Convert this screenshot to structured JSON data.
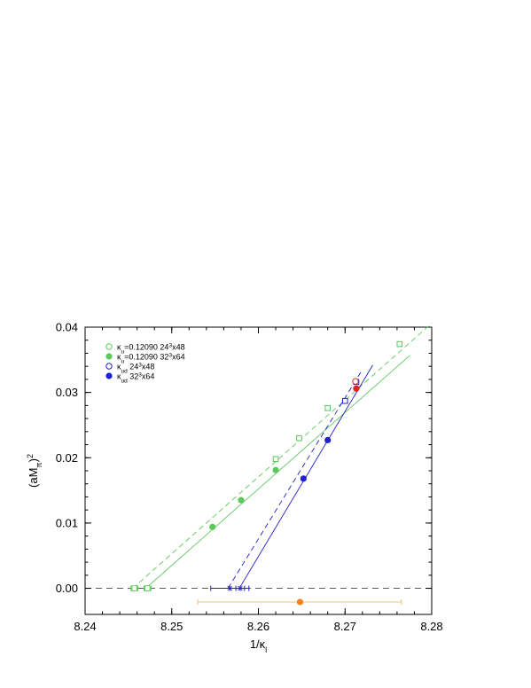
{
  "chart_data": {
    "type": "scatter",
    "title": "",
    "xlabel": "1/κ",
    "xlabel_sub": "l",
    "ylabel": "(aM",
    "ylabel_sub": "π",
    "ylabel_tail": ")",
    "ylabel_sup": "2",
    "xlim": [
      8.24,
      8.28
    ],
    "ylim": [
      -0.004,
      0.04
    ],
    "xticks": [
      8.24,
      8.25,
      8.26,
      8.27,
      8.28
    ],
    "xtick_labels": [
      "8.24",
      "8.25",
      "8.26",
      "8.27",
      "8.28"
    ],
    "yticks": [
      0.0,
      0.01,
      0.02,
      0.03,
      0.04
    ],
    "ytick_labels": [
      "0.00",
      "0.01",
      "0.02",
      "0.03",
      "0.04"
    ],
    "grid": false,
    "zero_line": true,
    "legend_position": "top-left",
    "legend": [
      {
        "pre": "κ",
        "sub": "u",
        "mid": "=0.12090 24",
        "sup": "3",
        "post": "x48",
        "marker": "open-circle",
        "color": "#5cc85c"
      },
      {
        "pre": "κ",
        "sub": "u",
        "mid": "=0.12090 32",
        "sup": "3",
        "post": "x64",
        "marker": "filled-circle",
        "color": "#5cc85c"
      },
      {
        "pre": "κ",
        "sub": "ud",
        "mid": " 24",
        "sup": "3",
        "post": "x48",
        "marker": "open-circle",
        "color": "#2020d0"
      },
      {
        "pre": "κ",
        "sub": "ud",
        "mid": " 32",
        "sup": "3",
        "post": "x64",
        "marker": "filled-circle",
        "color": "#2020d0"
      }
    ],
    "series": [
      {
        "id": "green-open",
        "marker": "open-square",
        "color": "#5cc85c",
        "points": [
          [
            8.262,
            0.0198
          ],
          [
            8.2647,
            0.023
          ],
          [
            8.268,
            0.0276
          ],
          [
            8.2763,
            0.0374
          ]
        ],
        "fit_line": {
          "style": "dashed",
          "from": [
            8.2455,
            0.0
          ],
          "to": [
            8.28,
            0.0406
          ]
        },
        "intercept": {
          "x": 8.2457,
          "xerr": 0.0004,
          "marker": "open-square"
        }
      },
      {
        "id": "green-filled",
        "marker": "filled-circle",
        "color": "#5cc85c",
        "points": [
          [
            8.2547,
            0.0094
          ],
          [
            8.258,
            0.0135
          ],
          [
            8.262,
            0.0181
          ]
        ],
        "fit_line": {
          "style": "solid",
          "from": [
            8.247,
            0.0
          ],
          "to": [
            8.2775,
            0.0357
          ]
        },
        "intercept": {
          "x": 8.2472,
          "xerr": 0.0004,
          "marker": "open-square"
        }
      },
      {
        "id": "blue-open",
        "marker": "open-square",
        "color": "#2020d0",
        "points": [
          [
            8.27,
            0.0287
          ],
          [
            8.2713,
            0.0316
          ]
        ],
        "fit_line": {
          "style": "dashed",
          "from": [
            8.2565,
            0.0
          ],
          "to": [
            8.272,
            0.0335
          ]
        },
        "intercept": {
          "x": 8.2567,
          "xerr": 0.0022,
          "marker": "star"
        }
      },
      {
        "id": "blue-filled",
        "marker": "filled-circle",
        "color": "#2020d0",
        "points": [
          [
            8.2652,
            0.0168
          ],
          [
            8.268,
            0.0227
          ]
        ],
        "fit_line": {
          "style": "solid",
          "from": [
            8.2578,
            0.0
          ],
          "to": [
            8.2732,
            0.0342
          ]
        },
        "intercept": {
          "x": 8.2579,
          "xerr": 0.0005,
          "marker": "star"
        }
      },
      {
        "id": "red-open",
        "marker": "open-circle",
        "color": "#d03030",
        "points": [
          [
            8.2712,
            0.0317
          ]
        ]
      },
      {
        "id": "red-filled",
        "marker": "filled-circle",
        "color": "#e02020",
        "points": [
          [
            8.2713,
            0.0306
          ]
        ]
      },
      {
        "id": "orange",
        "marker": "filled-circle",
        "color": "#f08020",
        "errorbar_color": "#f0c070",
        "points": [
          [
            8.2648,
            -0.0021
          ]
        ],
        "xerr": [
          [
            8.253,
            8.2765
          ]
        ]
      }
    ]
  }
}
